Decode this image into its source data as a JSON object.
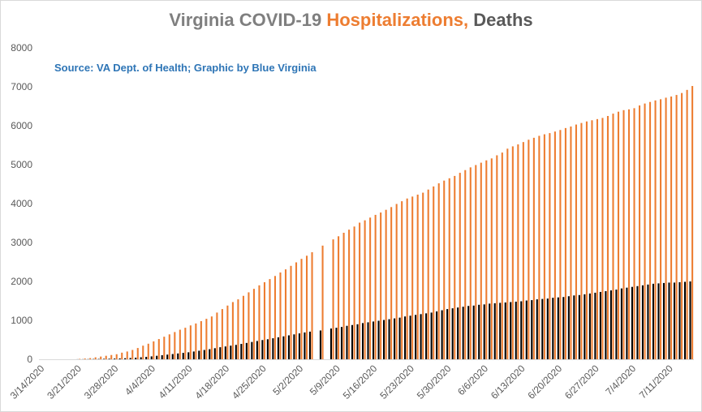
{
  "chart_data": {
    "type": "bar",
    "title": {
      "part1": "Virginia COVID-19 ",
      "part2": "Hospitalizations,",
      "part3": " Deaths"
    },
    "source_note": "Source: VA Dept. of Health; Graphic by Blue Virginia",
    "xlabel": "",
    "ylabel": "",
    "ylim": [
      0,
      8000
    ],
    "y_ticks": [
      0,
      1000,
      2000,
      3000,
      4000,
      5000,
      6000,
      7000,
      8000
    ],
    "x_tick_labels": [
      "3/14/2020",
      "3/21/2020",
      "3/28/2020",
      "4/4/2020",
      "4/11/2020",
      "4/18/2020",
      "4/25/2020",
      "5/2/2020",
      "5/9/2020",
      "5/16/2020",
      "5/23/2020",
      "5/30/2020",
      "6/6/2020",
      "6/13/2020",
      "6/20/2020",
      "6/27/2020",
      "7/4/2020",
      "7/11/2020"
    ],
    "start_date": "3/14/2020",
    "end_date": "7/17/2020",
    "grid": false,
    "legend": "none",
    "colors": {
      "title_gray": "#7f7f7f",
      "hospitalizations": "#ed7d31",
      "deaths": "#000000",
      "source_blue": "#2e75b6"
    },
    "series": [
      {
        "name": "Hospitalizations",
        "values": [
          null,
          null,
          null,
          null,
          null,
          null,
          null,
          10,
          20,
          30,
          50,
          70,
          90,
          110,
          130,
          170,
          200,
          240,
          290,
          350,
          400,
          460,
          520,
          580,
          640,
          700,
          760,
          810,
          870,
          920,
          980,
          1040,
          1100,
          1200,
          1290,
          1380,
          1470,
          1540,
          1630,
          1720,
          1810,
          1900,
          1980,
          2060,
          2140,
          2230,
          2310,
          2400,
          2490,
          2580,
          2660,
          2750,
          null,
          2920,
          null,
          3080,
          3160,
          3250,
          3330,
          3410,
          3510,
          3570,
          3640,
          3710,
          3770,
          3840,
          3910,
          3990,
          4060,
          4130,
          4180,
          4230,
          4280,
          4360,
          4440,
          4520,
          4590,
          4650,
          4710,
          4790,
          4860,
          4930,
          4990,
          5050,
          5110,
          5160,
          5240,
          5310,
          5410,
          5470,
          5520,
          5580,
          5640,
          5690,
          5740,
          5780,
          5810,
          5850,
          5890,
          5940,
          5980,
          6030,
          6070,
          6110,
          6140,
          6170,
          6200,
          6250,
          6310,
          6360,
          6400,
          6420,
          6450,
          6520,
          6570,
          6610,
          6650,
          6680,
          6720,
          6750,
          6790,
          6840,
          6920,
          7020
        ]
      },
      {
        "name": "Deaths",
        "values": [
          null,
          null,
          null,
          null,
          null,
          null,
          null,
          2,
          3,
          5,
          7,
          9,
          12,
          15,
          18,
          22,
          27,
          34,
          41,
          52,
          63,
          75,
          90,
          105,
          120,
          135,
          150,
          165,
          180,
          200,
          220,
          240,
          260,
          285,
          310,
          330,
          350,
          370,
          395,
          420,
          445,
          470,
          495,
          515,
          540,
          565,
          590,
          615,
          640,
          665,
          690,
          710,
          null,
          740,
          null,
          790,
          810,
          830,
          860,
          880,
          900,
          930,
          950,
          970,
          990,
          1010,
          1030,
          1050,
          1070,
          1100,
          1120,
          1140,
          1160,
          1180,
          1200,
          1230,
          1260,
          1290,
          1310,
          1330,
          1350,
          1370,
          1380,
          1400,
          1410,
          1430,
          1440,
          1450,
          1460,
          1470,
          1480,
          1490,
          1510,
          1520,
          1540,
          1550,
          1560,
          1580,
          1590,
          1600,
          1620,
          1640,
          1650,
          1670,
          1690,
          1710,
          1730,
          1750,
          1770,
          1790,
          1820,
          1840,
          1860,
          1880,
          1900,
          1920,
          1940,
          1950,
          1960,
          1970,
          1970,
          1980,
          1990,
          2000
        ]
      }
    ]
  }
}
